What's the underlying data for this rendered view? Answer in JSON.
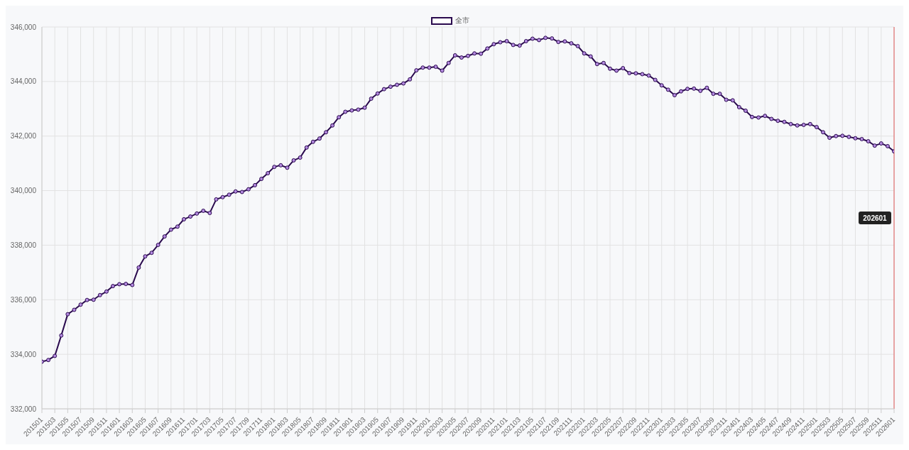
{
  "chart_data": {
    "type": "line",
    "categories": [
      "201501",
      null,
      "201503",
      null,
      "201505",
      null,
      "201507",
      null,
      "201509",
      null,
      "201511",
      null,
      "201601",
      null,
      "201603",
      null,
      "201605",
      null,
      "201607",
      null,
      "201609",
      null,
      "201611",
      null,
      "201701",
      null,
      "201703",
      null,
      "201705",
      null,
      "201707",
      null,
      "201709",
      null,
      "201711",
      null,
      "201801",
      null,
      "201803",
      null,
      "201805",
      null,
      "201807",
      null,
      "201809",
      null,
      "201811",
      null,
      "201901",
      null,
      "201903",
      null,
      "201905",
      null,
      "201907",
      null,
      "201909",
      null,
      "201911",
      null,
      "202001",
      null,
      "202003",
      null,
      "202005",
      null,
      "202007",
      null,
      "202009",
      null,
      "202011",
      null,
      "202101",
      null,
      "202103",
      null,
      "202105",
      null,
      "202107",
      null,
      "202109",
      null,
      "202111",
      null,
      "202201",
      null,
      "202203",
      null,
      "202205",
      null,
      "202207",
      null,
      "202209",
      null,
      "202211",
      null,
      "202301",
      null,
      "202303",
      null,
      "202305",
      null,
      "202307",
      null,
      "202309",
      null,
      "202311",
      null,
      "202401",
      null,
      "202403",
      null,
      "202405",
      null,
      "202407",
      null,
      "202409",
      null,
      "202411",
      null,
      "202501",
      null,
      "202503",
      null,
      "202505",
      null,
      "202507",
      null,
      "202509",
      null,
      "202511",
      null,
      "202601"
    ],
    "series": [
      {
        "name": "全市",
        "color": "#2a0a4e",
        "values": [
          333730,
          333790,
          333940,
          334690,
          335470,
          335630,
          335820,
          335990,
          336000,
          336170,
          336300,
          336500,
          336570,
          336580,
          336540,
          337180,
          337590,
          337720,
          338010,
          338320,
          338570,
          338680,
          338950,
          339050,
          339160,
          339260,
          339180,
          339680,
          339760,
          339850,
          339970,
          339950,
          340050,
          340200,
          340430,
          340640,
          340870,
          340930,
          340840,
          341110,
          341210,
          341580,
          341790,
          341910,
          342140,
          342390,
          342690,
          342890,
          342940,
          342970,
          343040,
          343370,
          343560,
          343720,
          343810,
          343880,
          343930,
          344080,
          344410,
          344510,
          344510,
          344540,
          344400,
          344680,
          344960,
          344880,
          344940,
          345030,
          345020,
          345210,
          345370,
          345440,
          345480,
          345340,
          345320,
          345480,
          345570,
          345520,
          345600,
          345580,
          345450,
          345470,
          345400,
          345300,
          345030,
          344920,
          344640,
          344680,
          344470,
          344400,
          344490,
          344310,
          344300,
          344270,
          344220,
          344060,
          343860,
          343700,
          343500,
          343640,
          343730,
          343740,
          343660,
          343770,
          343550,
          343550,
          343330,
          343310,
          343060,
          342930,
          342700,
          342680,
          342740,
          342630,
          342560,
          342520,
          342440,
          342390,
          342410,
          342440,
          342330,
          342140,
          341940,
          342000,
          342010,
          341970,
          341920,
          341890,
          341810,
          341650,
          341730,
          341630,
          341440
        ]
      }
    ],
    "ylim": [
      332000,
      346000
    ],
    "yticks": [
      {
        "value": 332000,
        "label": "332,000"
      },
      {
        "value": 334000,
        "label": "334,000"
      },
      {
        "value": 336000,
        "label": "336,000"
      },
      {
        "value": 338000,
        "label": "338,000"
      },
      {
        "value": 340000,
        "label": "340,000"
      },
      {
        "value": 342000,
        "label": "342,000"
      },
      {
        "value": 344000,
        "label": "344,000"
      },
      {
        "value": 346000,
        "label": "346,000"
      }
    ],
    "ref_lines": [
      {
        "axis": "x",
        "value": "202601",
        "label": "202601",
        "color": "#e05a5a"
      }
    ],
    "grid": true,
    "legend": "top",
    "marker": "circle",
    "line_style": "solid"
  }
}
